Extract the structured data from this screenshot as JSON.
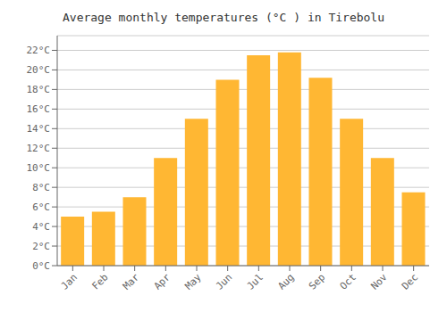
{
  "chart_data": {
    "type": "bar",
    "title": "Average monthly temperatures (°C ) in Tirebolu",
    "categories": [
      "Jan",
      "Feb",
      "Mar",
      "Apr",
      "May",
      "Jun",
      "Jul",
      "Aug",
      "Sep",
      "Oct",
      "Nov",
      "Dec"
    ],
    "values": [
      5.0,
      5.5,
      7.0,
      11.0,
      15.0,
      19.0,
      21.5,
      21.8,
      19.2,
      15.0,
      11.0,
      7.5
    ],
    "color": "#FFB733",
    "ylim": [
      0,
      23.5
    ],
    "yticks": [
      {
        "value": 0,
        "label": "0°C"
      },
      {
        "value": 2,
        "label": "2°C"
      },
      {
        "value": 4,
        "label": "4°C"
      },
      {
        "value": 6,
        "label": "6°C"
      },
      {
        "value": 8,
        "label": "8°C"
      },
      {
        "value": 10,
        "label": "10°C"
      },
      {
        "value": 12,
        "label": "12°C"
      },
      {
        "value": 14,
        "label": "14°C"
      },
      {
        "value": 16,
        "label": "16°C"
      },
      {
        "value": 18,
        "label": "18°C"
      },
      {
        "value": 20,
        "label": "20°C"
      },
      {
        "value": 22,
        "label": "22°C"
      }
    ],
    "grid": true
  }
}
